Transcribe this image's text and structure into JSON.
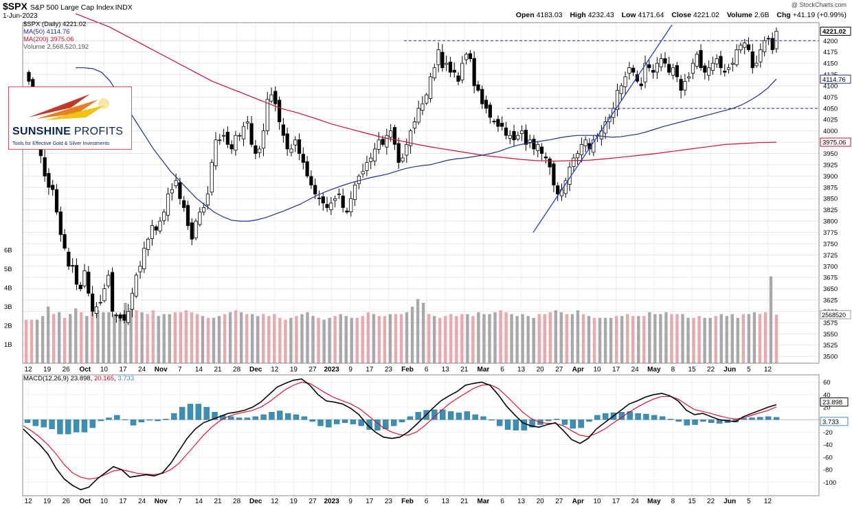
{
  "header": {
    "symbol": "$SPX",
    "name": "S&P 500 Large Cap Index",
    "exchange": "INDX",
    "date": "1-Jun-2023",
    "brand": "@ StockCharts.com",
    "open_label": "Open",
    "open": "4183.03",
    "high_label": "High",
    "high": "4232.43",
    "low_label": "Low",
    "low": "4171.64",
    "close_label": "Close",
    "close": "4221.02",
    "volume_label": "Volume",
    "volume": "2.6B",
    "chg_label": "Chg",
    "chg": "+41.19 (+0.99%)"
  },
  "logo": {
    "name_bold": "SUNSHINE",
    "name_rest": " PROFITS",
    "tagline": "Tools for Effective Gold & Silver Investments"
  },
  "legend": {
    "price": "$SPX (Daily) 4221.02",
    "ma50": "MA(50) 4114.76",
    "ma200": "MA(200) 3975.06",
    "volume": "Volume 2,568,520,192"
  },
  "macd_legend": {
    "label": "MACD(12,26,9)",
    "macd": "23.898",
    "signal": "20.165",
    "hist": "3.733"
  },
  "colors": {
    "up": "#ffffff",
    "down": "#000000",
    "ma50": "#1f2f8c",
    "ma200": "#c8102e",
    "vol_up": "#a8a8a8",
    "vol_down": "#e8a8ad",
    "trend": "#1f3fd6",
    "macd": "#000000",
    "signal": "#e0001a",
    "hist": "#3a8fb7"
  },
  "chart_data": [
    {
      "type": "candlestick",
      "title": "$SPX S&P 500 Large Cap Index",
      "ylim": [
        3485,
        4240
      ],
      "yticks": [
        3500,
        3525,
        3550,
        3575,
        3600,
        3625,
        3650,
        3675,
        3700,
        3725,
        3750,
        3775,
        3800,
        3825,
        3850,
        3875,
        3900,
        3925,
        3950,
        3975,
        4000,
        4025,
        4050,
        4075,
        4100,
        4125,
        4150,
        4175,
        4200
      ],
      "xticks": [
        "12",
        "19",
        "26",
        "Oct",
        "10",
        "17",
        "24",
        "Nov",
        "7",
        "14",
        "21",
        "28",
        "Dec",
        "12",
        "19",
        "27",
        "2023",
        "9",
        "17",
        "23",
        "Feb",
        "6",
        "13",
        "21",
        "Mar",
        "6",
        "13",
        "20",
        "27",
        "Apr",
        "10",
        "17",
        "24",
        "May",
        "8",
        "15",
        "22",
        "Jun",
        "5",
        "12"
      ],
      "price_labels": [
        "4221.02",
        "4114.76",
        "3975.06"
      ],
      "close": [
        4110,
        4060,
        3990,
        3945,
        3900,
        3875,
        3870,
        3820,
        3770,
        3740,
        3700,
        3700,
        3660,
        3650,
        3690,
        3640,
        3600,
        3610,
        3620,
        3650,
        3680,
        3600,
        3590,
        3585,
        3580,
        3600,
        3640,
        3680,
        3700,
        3740,
        3760,
        3790,
        3780,
        3800,
        3820,
        3860,
        3870,
        3890,
        3850,
        3830,
        3790,
        3760,
        3800,
        3820,
        3830,
        3860,
        3930,
        3980,
        3980,
        3990,
        3970,
        3960,
        3990,
        3990,
        4010,
        4020,
        3970,
        3950,
        3960,
        4000,
        4070,
        4080,
        4060,
        4020,
        3990,
        3960,
        3960,
        3980,
        3950,
        3930,
        3900,
        3880,
        3860,
        3850,
        3840,
        3830,
        3840,
        3850,
        3860,
        3830,
        3820,
        3850,
        3880,
        3900,
        3910,
        3930,
        3940,
        3960,
        3980,
        3970,
        3990,
        4000,
        3970,
        3930,
        3940,
        3970,
        4000,
        4020,
        4050,
        4060,
        4080,
        4120,
        4140,
        4180,
        4140,
        4150,
        4130,
        4130,
        4110,
        4150,
        4170,
        4160,
        4100,
        4090,
        4060,
        4050,
        4030,
        4020,
        4010,
        4010,
        3990,
        3990,
        3980,
        3990,
        4000,
        3970,
        3980,
        3960,
        3970,
        3950,
        3940,
        3920,
        3880,
        3860,
        3870,
        3890,
        3920,
        3940,
        3950,
        3970,
        3980,
        3960,
        3980,
        3990,
        4000,
        4020,
        4030,
        4050,
        4090,
        4100,
        4120,
        4140,
        4130,
        4110,
        4100,
        4150,
        4140,
        4130,
        4150,
        4160,
        4150,
        4130,
        4140,
        4120,
        4090,
        4110,
        4120,
        4150,
        4170,
        4140,
        4130,
        4140,
        4150,
        4160,
        4140,
        4130,
        4140,
        4150,
        4180,
        4190,
        4195,
        4180,
        4140,
        4150,
        4180,
        4200,
        4205,
        4180,
        4221.02
      ],
      "ma50": [
        4140,
        4140,
        4138,
        4130,
        4110,
        4080,
        4050,
        4020,
        3990,
        3960,
        3935,
        3910,
        3890,
        3870,
        3850,
        3835,
        3820,
        3810,
        3802,
        3800,
        3800,
        3803,
        3808,
        3815,
        3822,
        3830,
        3838,
        3848,
        3858,
        3866,
        3873,
        3880,
        3886,
        3891,
        3896,
        3900,
        3904,
        3910,
        3916,
        3920,
        3923,
        3925,
        3930,
        3935,
        3938,
        3940,
        3943,
        3946,
        3950,
        3955,
        3962,
        3968,
        3972,
        3975,
        3978,
        3981,
        3985,
        3988,
        3990,
        3990,
        3990,
        3988,
        3986,
        3987,
        3990,
        3993,
        3998,
        4004,
        4010,
        4015,
        4020,
        4025,
        4030,
        4035,
        4040,
        4045,
        4050,
        4058,
        4068,
        4080,
        4095,
        4115
      ],
      "ma200": [
        4260,
        4245,
        4230,
        4210,
        4190,
        4170,
        4150,
        4130,
        4110,
        4095,
        4080,
        4065,
        4050,
        4040,
        4028,
        4015,
        4005,
        3995,
        3985,
        3978,
        3970,
        3963,
        3957,
        3951,
        3945,
        3941,
        3937,
        3934,
        3933,
        3934,
        3935,
        3938,
        3942,
        3946,
        3950,
        3955,
        3960,
        3965,
        3970,
        3972,
        3974,
        3975.06
      ],
      "volume_B": [
        2.3,
        2.3,
        2.3,
        2.5,
        3.0,
        2.6,
        2.7,
        2.4,
        2.6,
        2.9,
        2.7,
        2.5,
        3.0,
        2.8,
        2.7,
        2.7,
        2.6,
        2.5,
        3.2,
        2.9,
        2.8,
        2.7,
        2.6,
        2.8,
        2.5,
        2.6,
        2.6,
        2.7,
        2.7,
        2.8,
        2.7,
        2.6,
        2.5,
        2.4,
        2.4,
        2.5,
        2.6,
        2.7,
        2.8,
        2.7,
        2.6,
        2.6,
        2.5,
        2.6,
        2.5,
        2.6,
        2.4,
        2.3,
        2.4,
        2.5,
        2.6,
        2.7,
        2.5,
        2.4,
        2.3,
        2.4,
        2.5,
        2.6,
        2.5,
        2.4,
        2.4,
        2.5,
        2.7,
        2.6,
        2.5,
        2.5,
        2.6,
        2.6,
        2.6,
        2.7,
        3.0,
        3.4,
        3.2,
        2.6,
        2.5,
        2.4,
        2.5,
        2.6,
        2.5,
        2.6,
        2.6,
        2.5,
        2.7,
        2.6,
        2.6,
        2.7,
        2.8,
        2.7,
        2.6,
        2.5,
        2.6,
        2.5,
        2.4,
        2.6,
        2.6,
        2.7,
        2.8,
        2.7,
        2.6,
        2.6,
        2.8,
        2.6,
        2.5,
        2.4,
        2.4,
        2.4,
        2.4,
        2.5,
        2.5,
        2.6,
        2.5,
        2.5,
        2.5,
        2.7,
        2.6,
        2.6,
        2.7,
        2.6,
        2.6,
        2.6,
        2.4,
        2.4,
        2.5,
        2.4,
        2.4,
        2.5,
        2.6,
        2.5,
        2.6,
        2.4,
        2.6,
        2.6,
        2.7,
        2.6,
        2.7,
        4.6,
        2.57
      ],
      "volume_ticks": [
        "1B",
        "2B",
        "3B",
        "4B",
        "5B",
        "6B"
      ],
      "volume_label": "2568520"
    },
    {
      "type": "line",
      "title": "MACD(12,26,9)",
      "ylim": [
        -115,
        65
      ],
      "yticks": [
        -100,
        -80,
        -60,
        -40,
        -20,
        0,
        20,
        40,
        60
      ],
      "macd": [
        -15,
        -28,
        -40,
        -55,
        -78,
        -95,
        -105,
        -112,
        -108,
        -95,
        -85,
        -75,
        -80,
        -92,
        -90,
        -88,
        -90,
        -85,
        -70,
        -50,
        -30,
        -15,
        -5,
        0,
        5,
        10,
        12,
        15,
        20,
        28,
        40,
        52,
        58,
        63,
        65,
        55,
        40,
        30,
        28,
        25,
        18,
        8,
        -8,
        -20,
        -28,
        -30,
        -28,
        -20,
        -8,
        5,
        18,
        30,
        38,
        45,
        55,
        58,
        60,
        55,
        40,
        22,
        8,
        -5,
        -10,
        -12,
        -8,
        -5,
        -18,
        -32,
        -38,
        -30,
        -15,
        -5,
        5,
        15,
        25,
        30,
        36,
        40,
        42,
        38,
        30,
        15,
        8,
        10,
        5,
        0,
        -2,
        -3,
        5,
        10,
        15,
        20,
        23.898
      ],
      "signal": [
        -10,
        -18,
        -28,
        -40,
        -55,
        -72,
        -85,
        -92,
        -95,
        -93,
        -88,
        -82,
        -80,
        -83,
        -86,
        -87,
        -88,
        -86,
        -80,
        -70,
        -55,
        -40,
        -25,
        -12,
        -2,
        5,
        9,
        12,
        15,
        20,
        28,
        38,
        48,
        55,
        60,
        58,
        50,
        42,
        35,
        30,
        25,
        18,
        8,
        -3,
        -13,
        -20,
        -24,
        -25,
        -20,
        -10,
        2,
        14,
        25,
        34,
        42,
        50,
        55,
        56,
        50,
        38,
        25,
        12,
        2,
        -4,
        -6,
        -6,
        -10,
        -18,
        -25,
        -27,
        -22,
        -15,
        -6,
        3,
        12,
        20,
        27,
        33,
        37,
        37,
        33,
        24,
        16,
        13,
        10,
        6,
        3,
        1,
        3,
        7,
        11,
        15,
        20.165
      ],
      "histogram": [
        -5,
        -10,
        -12,
        -15,
        -23,
        -23,
        -20,
        -20,
        -13,
        -2,
        3,
        7,
        0,
        -9,
        -4,
        -1,
        -2,
        1,
        10,
        20,
        25,
        25,
        20,
        12,
        7,
        5,
        3,
        3,
        5,
        8,
        12,
        14,
        10,
        8,
        5,
        -3,
        -10,
        -12,
        -7,
        -5,
        -7,
        -10,
        -16,
        -17,
        -15,
        -10,
        -4,
        5,
        12,
        15,
        16,
        16,
        13,
        11,
        13,
        8,
        5,
        -1,
        -10,
        -16,
        -17,
        -17,
        -12,
        -8,
        -2,
        1,
        -8,
        -14,
        -13,
        -3,
        7,
        10,
        11,
        12,
        13,
        10,
        9,
        7,
        5,
        1,
        -3,
        -9,
        -8,
        -3,
        -5,
        -6,
        -5,
        -4,
        2,
        3,
        4,
        5,
        3.733
      ],
      "x_note": "daily, mid-Sep 2022 to Jun 2023"
    }
  ]
}
